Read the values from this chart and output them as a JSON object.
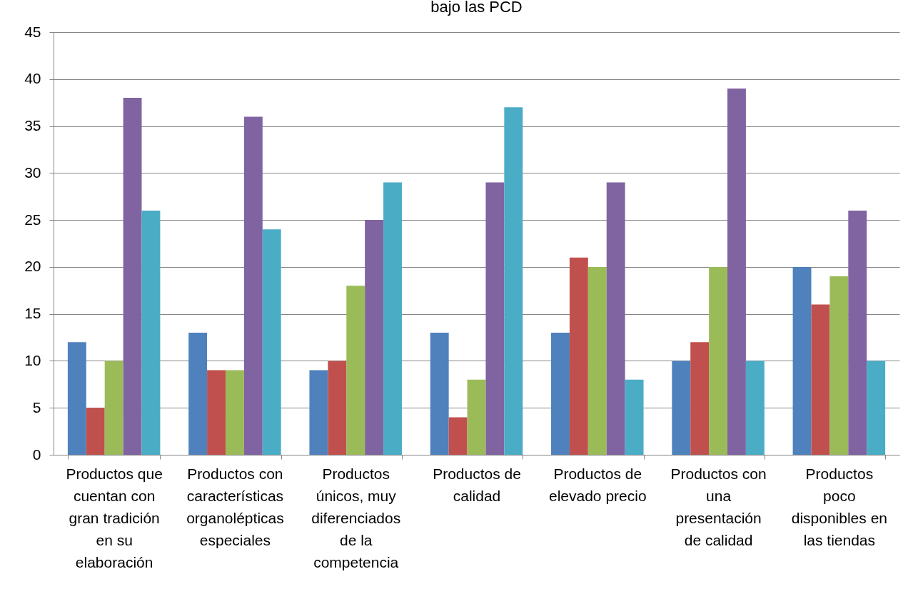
{
  "chart_data": {
    "type": "bar",
    "title": "bajo las PCD",
    "categories": [
      "Productos que cuentan con gran tradición en su elaboración",
      "Productos con características organolépticas especiales",
      "Productos únicos, muy diferenciados de la competencia",
      "Productos de calidad",
      "Productos de elevado precio",
      "Productos con una presentación de calidad",
      "Productos poco disponibles en las tiendas"
    ],
    "series": [
      {
        "color": "#4f81bd",
        "values": [
          12,
          13,
          9,
          13,
          13,
          10,
          20
        ]
      },
      {
        "color": "#c0504d",
        "values": [
          5,
          9,
          10,
          4,
          21,
          12,
          16
        ]
      },
      {
        "color": "#9bbb59",
        "values": [
          10,
          9,
          18,
          8,
          20,
          20,
          19
        ]
      },
      {
        "color": "#8064a2",
        "values": [
          38,
          36,
          25,
          29,
          29,
          39,
          26
        ]
      },
      {
        "color": "#4bacc6",
        "values": [
          26,
          24,
          29,
          37,
          8,
          10,
          10
        ]
      }
    ],
    "ylim": [
      0,
      45
    ],
    "yticks": [
      0,
      5,
      10,
      15,
      20,
      25,
      30,
      35,
      40,
      45
    ],
    "grid": "y"
  }
}
